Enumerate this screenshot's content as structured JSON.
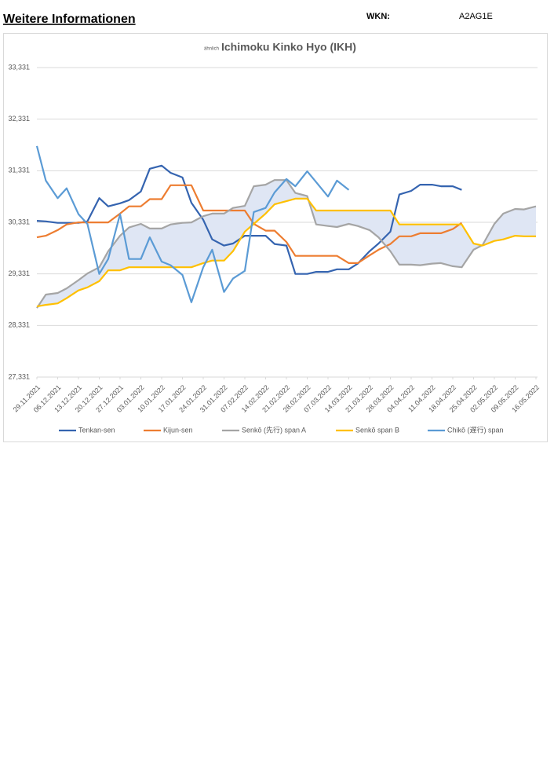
{
  "header": {
    "title": "Weitere Informationen",
    "wkn_label": "WKN:",
    "wkn": "A2AG1E"
  },
  "chart_data": {
    "type": "line",
    "subtitle": "ähnlich",
    "title": "Ichimoku Kinko Hyo (IKH)",
    "x": [
      "29.11.2021",
      "02.12.2021",
      "06.12.2021",
      "09.12.2021",
      "13.12.2021",
      "16.12.2021",
      "20.12.2021",
      "23.12.2021",
      "27.12.2021",
      "30.12.2021",
      "03.01.2022",
      "06.01.2022",
      "10.01.2022",
      "13.01.2022",
      "17.01.2022",
      "20.01.2022",
      "24.01.2022",
      "27.01.2022",
      "31.01.2022",
      "03.02.2022",
      "07.02.2022",
      "10.02.2022",
      "14.02.2022",
      "17.02.2022",
      "21.02.2022",
      "24.02.2022",
      "28.02.2022",
      "03.03.2022",
      "07.03.2022",
      "10.03.2022",
      "14.03.2022",
      "17.03.2022",
      "21.03.2022",
      "24.03.2022",
      "28.03.2022",
      "31.03.2022",
      "04.04.2022",
      "07.04.2022",
      "11.04.2022",
      "14.04.2022",
      "18.04.2022",
      "21.04.2022",
      "25.04.2022",
      "28.04.2022",
      "02.05.2022",
      "05.05.2022",
      "09.05.2022",
      "12.05.2022",
      "16.05.2022"
    ],
    "xlim": [
      "29.11.2021",
      "16.05.2022"
    ],
    "xticks": [
      "29.11.2021",
      "06.12.2021",
      "13.12.2021",
      "20.12.2021",
      "27.12.2021",
      "03.01.2022",
      "10.01.2022",
      "17.01.2022",
      "24.01.2022",
      "31.01.2022",
      "07.02.2022",
      "14.02.2022",
      "21.02.2022",
      "28.02.2022",
      "07.03.2022",
      "14.03.2022",
      "21.03.2022",
      "28.03.2022",
      "04.04.2022",
      "11.04.2022",
      "18.04.2022",
      "25.04.2022",
      "02.05.2022",
      "09.05.2022",
      "16.05.2022"
    ],
    "ylim": [
      27331,
      33331
    ],
    "yticks": [
      {
        "value": 27331,
        "label": "27,331"
      },
      {
        "value": 28331,
        "label": "28,331"
      },
      {
        "value": 29331,
        "label": "29,331"
      },
      {
        "value": 30331,
        "label": "30,331"
      },
      {
        "value": 31331,
        "label": "31,331"
      },
      {
        "value": 32331,
        "label": "32,331"
      },
      {
        "value": 33331,
        "label": "33,331"
      }
    ],
    "grid": true,
    "legend": "bottom",
    "cloud_color": "#dfe6f4",
    "series": [
      {
        "name": "Tenkan-sen",
        "color": "#3564b0",
        "values": [
          30360,
          30350,
          30320,
          30320,
          30320,
          30350,
          30800,
          30640,
          30700,
          30760,
          30930,
          31370,
          31430,
          31290,
          31200,
          30710,
          30380,
          30000,
          29880,
          29920,
          30070,
          30070,
          30070,
          29910,
          29880,
          29330,
          29330,
          29370,
          29370,
          29420,
          29420,
          29530,
          29770,
          29920,
          30150,
          30870,
          30940,
          31060,
          31060,
          31030,
          31030,
          30960,
          null,
          null,
          null,
          null,
          null,
          null,
          null
        ]
      },
      {
        "name": "Kijun-sen",
        "color": "#ed7d31",
        "values": [
          30040,
          30070,
          30180,
          30290,
          30330,
          30330,
          30330,
          30330,
          30500,
          30640,
          30640,
          30780,
          30780,
          31050,
          31050,
          31050,
          30560,
          30560,
          30560,
          30560,
          30560,
          30300,
          30170,
          30170,
          29950,
          29680,
          29680,
          29680,
          29680,
          29680,
          29540,
          29540,
          29690,
          29800,
          29910,
          30060,
          30060,
          30120,
          30120,
          30120,
          30200,
          30320,
          null,
          null,
          null,
          null,
          null,
          null,
          null
        ]
      },
      {
        "name": "Senkō (先行) span A",
        "color": "#a5a5a5",
        "values": [
          28670,
          28930,
          28960,
          29050,
          29210,
          29340,
          29460,
          29770,
          30070,
          30230,
          30300,
          30210,
          30210,
          30290,
          30320,
          30330,
          30450,
          30500,
          30500,
          30610,
          30650,
          31030,
          31060,
          31150,
          31150,
          30900,
          30840,
          30290,
          30260,
          30240,
          30300,
          30260,
          30180,
          30040,
          29770,
          29510,
          29510,
          29500,
          29530,
          29540,
          29480,
          29460,
          29800,
          29890,
          30300,
          30500,
          30590,
          30580,
          30640
        ]
      },
      {
        "name": "Senkō span B",
        "color": "#ffc000",
        "values": [
          28700,
          28730,
          28760,
          28860,
          29010,
          29070,
          29190,
          29400,
          29400,
          29460,
          29460,
          29460,
          29460,
          29460,
          29460,
          29460,
          29540,
          29590,
          29590,
          29770,
          30150,
          30300,
          30500,
          30680,
          30740,
          30790,
          30790,
          30560,
          30560,
          30560,
          30560,
          30560,
          30560,
          30560,
          30560,
          30290,
          30290,
          30290,
          30290,
          30290,
          30290,
          30290,
          29920,
          29880,
          29970,
          30000,
          30070,
          30060,
          30060
        ]
      },
      {
        "name": "Chikō (遅行) span",
        "color": "#5b9bd5",
        "values": [
          31810,
          31140,
          30800,
          30990,
          30490,
          30300,
          29330,
          29620,
          30490,
          29620,
          29620,
          30040,
          29570,
          29500,
          29310,
          28780,
          29460,
          29800,
          28980,
          29240,
          29390,
          30530,
          30610,
          30910,
          31170,
          31030,
          31320,
          31110,
          30830,
          31140,
          30960,
          null,
          null,
          null,
          null,
          null,
          null,
          null,
          null,
          null,
          null,
          null,
          null,
          null,
          null,
          null,
          null,
          null,
          null
        ]
      }
    ]
  }
}
